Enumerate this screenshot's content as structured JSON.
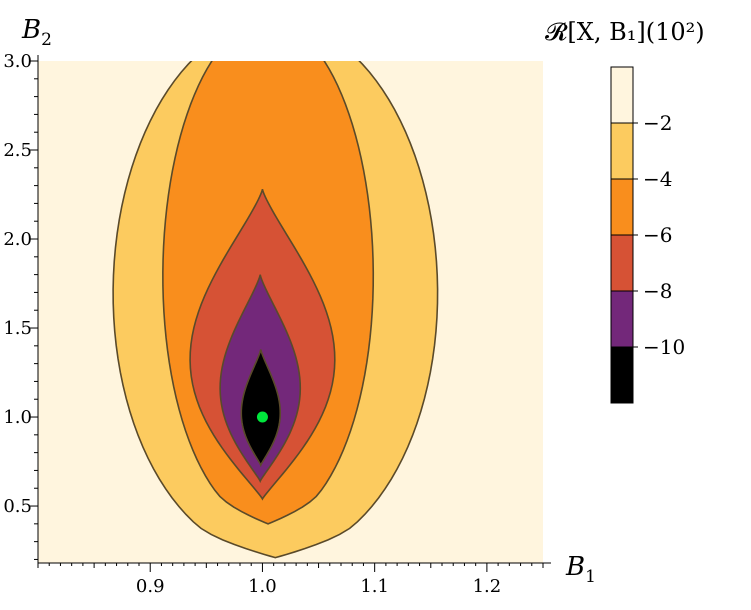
{
  "chart_data": {
    "type": "contour",
    "title": "",
    "xlabel": {
      "base": "B",
      "sub": "1"
    },
    "ylabel": {
      "base": "B",
      "sub": "2"
    },
    "legend_title": "𝓡[X, B₁](10²)",
    "xlim": [
      0.8,
      1.25
    ],
    "ylim": [
      0.18,
      3.0
    ],
    "xticks": [
      0.9,
      1.0,
      1.1,
      1.2
    ],
    "xtick_labels": [
      "0.9",
      "1.0",
      "1.1",
      "1.2"
    ],
    "yticks": [
      0.5,
      1.0,
      1.5,
      2.0,
      2.5,
      3.0
    ],
    "ytick_labels": [
      "0.5",
      "1.0",
      "1.5",
      "2.0",
      "2.5",
      "3.0"
    ],
    "grid": false,
    "legend_position": "right",
    "levels": [
      -12,
      -10,
      -8,
      -6,
      -4,
      -2,
      0
    ],
    "level_labels": [
      "−10",
      "−8",
      "−6",
      "−4",
      "−2"
    ],
    "colors": [
      "#000000",
      "#73287a",
      "#d65235",
      "#f98e1d",
      "#fccb5f",
      "#fff5de"
    ],
    "line_color": "#5a4a2a",
    "contours": [
      {
        "level": -2,
        "x_min": 0.865,
        "x_max": 1.158,
        "y_min": 0.21,
        "y_max": 3.0
      },
      {
        "level": -4,
        "x_min": 0.91,
        "x_max": 1.1,
        "y_min": 0.4,
        "y_max": 3.0
      },
      {
        "level": -6,
        "x_min": 0.935,
        "x_max": 1.065,
        "y_min": 0.54,
        "y_max": 2.28
      },
      {
        "level": -8,
        "x_min": 0.962,
        "x_max": 1.034,
        "y_min": 0.64,
        "y_max": 1.8
      },
      {
        "level": -10,
        "x_min": 0.981,
        "x_max": 1.016,
        "y_min": 0.73,
        "y_max": 1.38
      }
    ],
    "marker": {
      "x": 1.0,
      "y": 1.0,
      "color": "#00e63c"
    }
  }
}
